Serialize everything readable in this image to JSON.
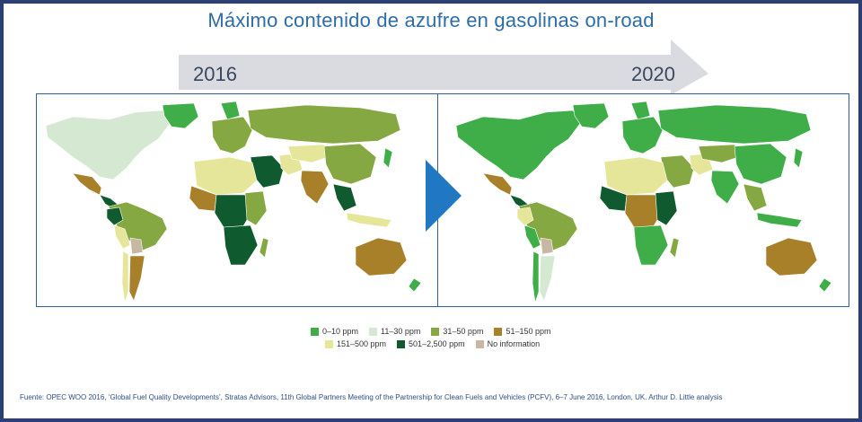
{
  "title": "Máximo contenido de azufre en gasolinas on-road",
  "timeline": {
    "start_label": "2016",
    "end_label": "2020"
  },
  "legend": [
    {
      "label": "0–10 ppm",
      "color": "#3fae49"
    },
    {
      "label": "11–30 ppm",
      "color": "#d5e8d2"
    },
    {
      "label": "31–50 ppm",
      "color": "#86a843"
    },
    {
      "label": "51–150 ppm",
      "color": "#a8802a"
    },
    {
      "label": "151–500 ppm",
      "color": "#e6e69a"
    },
    {
      "label": "501–2,500 ppm",
      "color": "#0f5a2e"
    },
    {
      "label": "No information",
      "color": "#c7b8a3"
    }
  ],
  "source": "Fuente: OPEC WOO 2016, ‘Global Fuel Quality Developments’, Stratas Advisors, 11th Global Partners Meeting of the Partnership for Clean Fuels and Vehicles (PCFV), 6–7 June 2016, London, UK. Arthur D. Little analysis",
  "colors": {
    "frame": "#2b3f73",
    "title": "#2f6da6",
    "arrow": "#dadbe0",
    "play": "#1f78c1"
  }
}
